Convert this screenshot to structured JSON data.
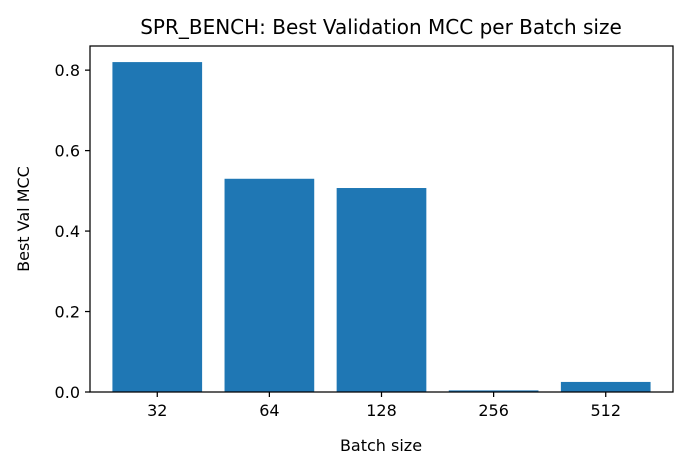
{
  "chart_data": {
    "type": "bar",
    "title": "SPR_BENCH: Best Validation MCC per Batch size",
    "xlabel": "Batch size",
    "ylabel": "Best Val MCC",
    "categories": [
      "32",
      "64",
      "128",
      "256",
      "512"
    ],
    "values": [
      0.82,
      0.53,
      0.507,
      0.004,
      0.025
    ],
    "ylim": [
      0,
      0.86
    ],
    "yticks": [
      0.0,
      0.2,
      0.4,
      0.6,
      0.8
    ],
    "ytick_labels": [
      "0.0",
      "0.2",
      "0.4",
      "0.6",
      "0.8"
    ],
    "bar_color": "#1f77b4",
    "grid": false,
    "legend": "none"
  }
}
